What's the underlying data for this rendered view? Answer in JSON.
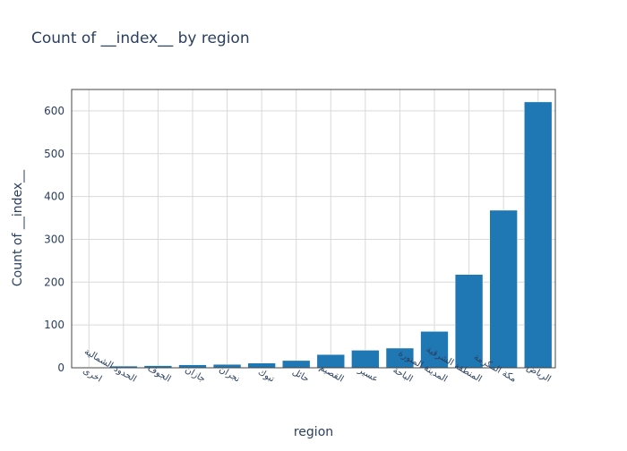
{
  "chart_data": {
    "type": "bar",
    "title": "Count of __index__ by region",
    "xlabel": "region",
    "ylabel": "Count of __index__",
    "categories": [
      "اخرى",
      "الحدود الشمالية",
      "الجوف",
      "جازان",
      "نجران",
      "تبوك",
      "حائل",
      "القصيم",
      "عسير",
      "الباحة",
      "المدينة المنورة",
      "المنطقة الشرقية",
      "مكة المكرمة",
      "الرياض"
    ],
    "values": [
      1,
      4,
      5,
      7,
      8,
      11,
      17,
      31,
      41,
      46,
      85,
      218,
      368,
      621
    ],
    "ylim": [
      0,
      650
    ],
    "yticks": [
      0,
      100,
      200,
      300,
      400,
      500,
      600
    ],
    "grid": true,
    "bar_color": "#1f77b4",
    "plot_bg": "#ffffff",
    "grid_color": "#d9d9d9",
    "text_color": "#2a3f5f"
  }
}
